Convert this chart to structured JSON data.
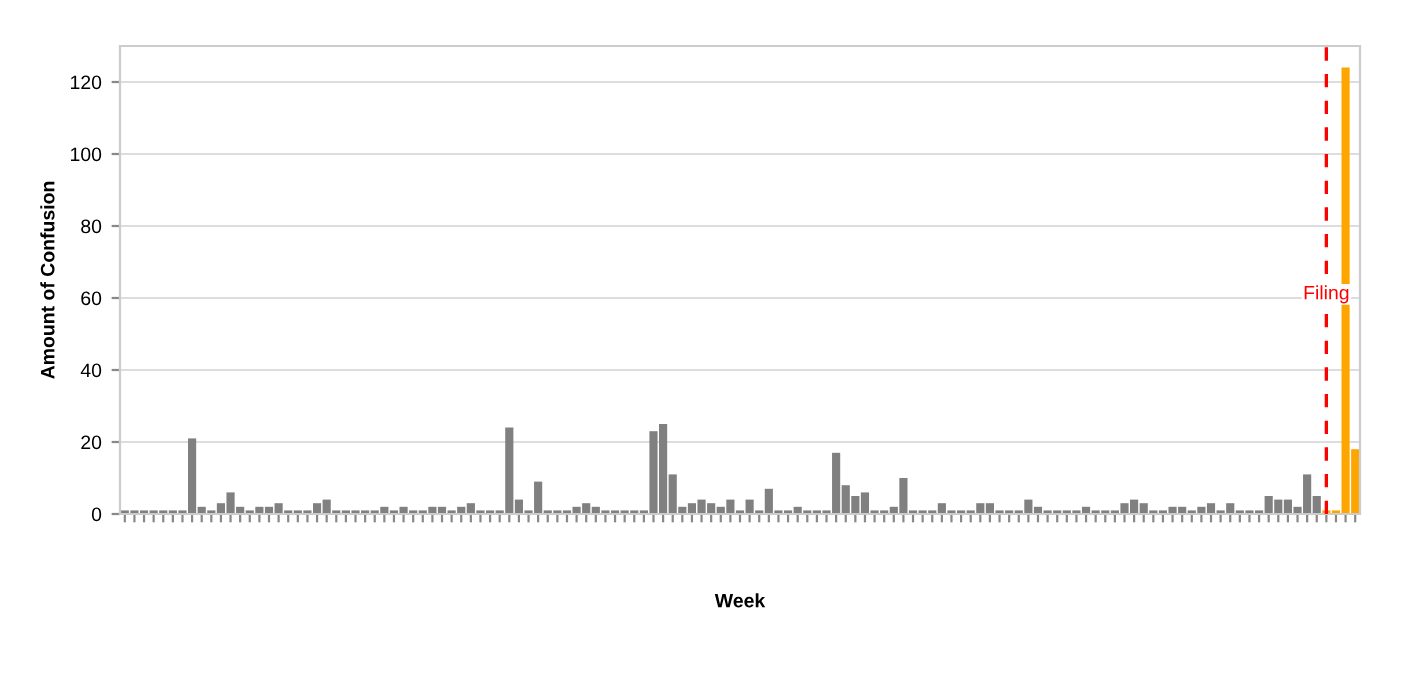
{
  "chart_data": {
    "type": "bar",
    "xlabel": "Week",
    "ylabel": "Amount of Confusion",
    "categories": [
      null,
      null,
      null,
      null,
      null,
      null,
      null,
      null,
      null,
      null,
      null,
      null,
      null,
      null,
      null,
      null,
      null,
      null,
      null,
      null,
      null,
      null,
      null,
      null,
      null,
      null,
      null,
      null,
      null,
      null,
      null,
      null,
      null,
      null,
      null,
      null,
      null,
      null,
      null,
      null,
      null,
      null,
      null,
      null,
      null,
      null,
      null,
      null,
      null,
      null,
      null,
      null,
      null,
      null,
      null,
      null,
      null,
      null,
      null,
      null,
      null,
      null,
      null,
      null,
      null,
      null,
      null,
      null,
      null,
      null,
      null,
      null,
      null,
      null,
      null,
      null,
      null,
      null,
      null,
      null,
      null,
      null,
      null,
      null,
      null,
      null,
      null,
      null,
      null,
      null,
      null,
      null,
      null,
      null,
      null,
      null,
      null,
      null,
      null,
      null,
      null,
      null,
      null,
      null,
      null,
      null,
      null,
      null,
      null,
      null,
      null,
      null,
      null,
      null,
      null,
      null,
      null,
      null,
      null,
      null,
      null,
      null,
      null,
      null,
      null,
      null,
      null,
      null,
      null
    ],
    "values": [
      1,
      1,
      1,
      1,
      1,
      1,
      1,
      21,
      2,
      1,
      3,
      6,
      2,
      1,
      2,
      2,
      3,
      1,
      1,
      1,
      3,
      4,
      1,
      1,
      1,
      1,
      1,
      2,
      1,
      2,
      1,
      1,
      2,
      2,
      1,
      2,
      3,
      1,
      1,
      1,
      24,
      4,
      1,
      9,
      1,
      1,
      1,
      2,
      3,
      2,
      1,
      1,
      1,
      1,
      1,
      23,
      25,
      11,
      2,
      3,
      4,
      3,
      2,
      4,
      1,
      4,
      1,
      7,
      1,
      1,
      2,
      1,
      1,
      1,
      17,
      8,
      5,
      6,
      1,
      1,
      2,
      10,
      1,
      1,
      1,
      3,
      1,
      1,
      1,
      3,
      3,
      1,
      1,
      1,
      4,
      2,
      1,
      1,
      1,
      1,
      2,
      1,
      1,
      1,
      3,
      4,
      3,
      1,
      1,
      2,
      2,
      1,
      2,
      3,
      1,
      3,
      1,
      1,
      1,
      5,
      4,
      4,
      2,
      11,
      5,
      1,
      1,
      124,
      18
    ],
    "colors": [
      "#808080",
      "#808080",
      "#808080",
      "#808080",
      "#808080",
      "#808080",
      "#808080",
      "#808080",
      "#808080",
      "#808080",
      "#808080",
      "#808080",
      "#808080",
      "#808080",
      "#808080",
      "#808080",
      "#808080",
      "#808080",
      "#808080",
      "#808080",
      "#808080",
      "#808080",
      "#808080",
      "#808080",
      "#808080",
      "#808080",
      "#808080",
      "#808080",
      "#808080",
      "#808080",
      "#808080",
      "#808080",
      "#808080",
      "#808080",
      "#808080",
      "#808080",
      "#808080",
      "#808080",
      "#808080",
      "#808080",
      "#808080",
      "#808080",
      "#808080",
      "#808080",
      "#808080",
      "#808080",
      "#808080",
      "#808080",
      "#808080",
      "#808080",
      "#808080",
      "#808080",
      "#808080",
      "#808080",
      "#808080",
      "#808080",
      "#808080",
      "#808080",
      "#808080",
      "#808080",
      "#808080",
      "#808080",
      "#808080",
      "#808080",
      "#808080",
      "#808080",
      "#808080",
      "#808080",
      "#808080",
      "#808080",
      "#808080",
      "#808080",
      "#808080",
      "#808080",
      "#808080",
      "#808080",
      "#808080",
      "#808080",
      "#808080",
      "#808080",
      "#808080",
      "#808080",
      "#808080",
      "#808080",
      "#808080",
      "#808080",
      "#808080",
      "#808080",
      "#808080",
      "#808080",
      "#808080",
      "#808080",
      "#808080",
      "#808080",
      "#808080",
      "#808080",
      "#808080",
      "#808080",
      "#808080",
      "#808080",
      "#808080",
      "#808080",
      "#808080",
      "#808080",
      "#808080",
      "#808080",
      "#808080",
      "#808080",
      "#808080",
      "#808080",
      "#808080",
      "#808080",
      "#808080",
      "#808080",
      "#808080",
      "#808080",
      "#808080",
      "#808080",
      "#808080",
      "#808080",
      "#808080",
      "#808080",
      "#808080",
      "#808080",
      "#808080",
      "#ffa500",
      "#ffa500",
      "#ffa500",
      "#ffa500"
    ],
    "annotations": [
      "Filing"
    ],
    "ylim": [
      0,
      130
    ],
    "yticks": [
      0,
      20,
      40,
      60,
      80,
      100,
      120
    ],
    "grid": "y"
  }
}
